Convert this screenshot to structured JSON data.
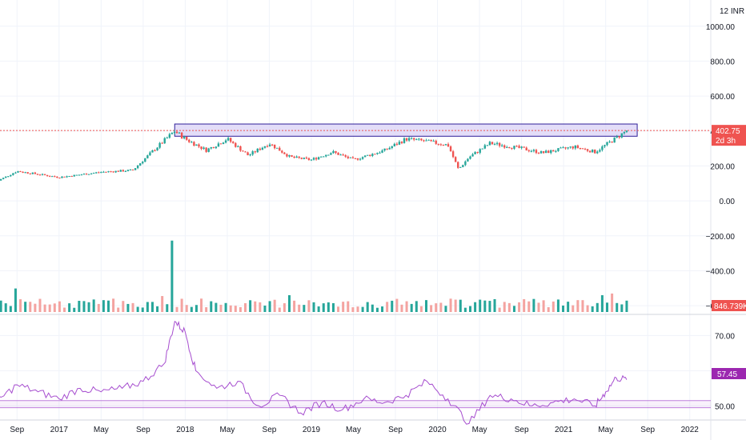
{
  "currency": "INR",
  "price_scale_prefix": "12",
  "colors": {
    "up": "#26a69a",
    "down": "#ef5350",
    "volume_up": "#26a69a",
    "volume_down": "#f4a3a0",
    "rsi_line": "#a64dcf",
    "rsi_tag": "#9c27b0",
    "zone_fill": "#d9d2f5",
    "zone_border": "#2f1f99",
    "grid": "#f0f3fa",
    "last_price_line": "#ef5350"
  },
  "price_tag": {
    "value": "402.75",
    "countdown": "2d 3h"
  },
  "volume_tag": {
    "value": "846.739K"
  },
  "rsi_tag": {
    "value": "57.45"
  },
  "chart_data": [
    {
      "type": "candlestick",
      "name": "price",
      "ylim": [
        -650,
        1150
      ],
      "y_ticks": [
        1000,
        800,
        600,
        400,
        200,
        0,
        -200,
        -400,
        -600
      ],
      "y_tick_labels": [
        "1000.00",
        "800.00",
        "600.00",
        "400.00",
        "200.00",
        "0.00",
        "−200.00",
        "−400.00",
        "−600.00"
      ],
      "x_tick_labels": [
        "Sep",
        "2017",
        "May",
        "Sep",
        "2018",
        "May",
        "Sep",
        "2019",
        "May",
        "Sep",
        "2020",
        "May",
        "Sep",
        "2021",
        "May",
        "Sep",
        "2022"
      ],
      "x_range": [
        "2016-07",
        "2022-03"
      ],
      "key_prices": [
        {
          "date": "2016-07",
          "close": 110
        },
        {
          "date": "2016-09",
          "close": 170
        },
        {
          "date": "2017-01",
          "close": 135
        },
        {
          "date": "2017-05",
          "close": 165
        },
        {
          "date": "2017-08",
          "close": 175
        },
        {
          "date": "2017-10",
          "close": 290
        },
        {
          "date": "2017-12",
          "close": 400
        },
        {
          "date": "2018-01",
          "close": 355
        },
        {
          "date": "2018-03",
          "close": 290
        },
        {
          "date": "2018-05",
          "close": 355
        },
        {
          "date": "2018-07",
          "close": 260
        },
        {
          "date": "2018-09",
          "close": 330
        },
        {
          "date": "2018-11",
          "close": 250
        },
        {
          "date": "2019-01",
          "close": 235
        },
        {
          "date": "2019-03",
          "close": 280
        },
        {
          "date": "2019-05",
          "close": 235
        },
        {
          "date": "2019-08",
          "close": 290
        },
        {
          "date": "2019-10",
          "close": 355
        },
        {
          "date": "2019-12",
          "close": 340
        },
        {
          "date": "2020-02",
          "close": 320
        },
        {
          "date": "2020-03",
          "close": 180
        },
        {
          "date": "2020-04",
          "close": 250
        },
        {
          "date": "2020-06",
          "close": 330
        },
        {
          "date": "2020-09",
          "close": 300
        },
        {
          "date": "2020-11",
          "close": 275
        },
        {
          "date": "2021-02",
          "close": 310
        },
        {
          "date": "2021-04",
          "close": 280
        },
        {
          "date": "2021-06",
          "close": 360
        },
        {
          "date": "2021-07",
          "close": 402.75
        }
      ],
      "zone": {
        "low": 370,
        "high": 440,
        "from": "2017-12",
        "to": "2021-08"
      },
      "last_price": 402.75
    },
    {
      "type": "bar",
      "name": "volume",
      "last_value": "846.739K",
      "spikes": [
        {
          "date": "2016-09",
          "value": 2.8
        },
        {
          "date": "2017-03",
          "value": 1.3
        },
        {
          "date": "2017-10",
          "value": 1.2
        },
        {
          "date": "2017-11",
          "value": 1.9
        },
        {
          "date": "2017-12",
          "value": 8.5
        },
        {
          "date": "2018-07",
          "value": 1.4
        },
        {
          "date": "2018-11",
          "value": 2.0
        },
        {
          "date": "2019-11",
          "value": 1.3
        },
        {
          "date": "2021-05",
          "value": 2.0
        },
        {
          "date": "2021-06",
          "value": 2.2
        }
      ]
    },
    {
      "type": "line",
      "name": "rsi",
      "ylim": [
        46,
        76
      ],
      "y_ticks": [
        70,
        60,
        50
      ],
      "y_tick_labels": [
        "70.00",
        "60.00",
        "50.00"
      ],
      "bands": [
        51.5,
        49.5
      ],
      "x": [
        "2016-07",
        "2016-09",
        "2016-11",
        "2017-01",
        "2017-03",
        "2017-05",
        "2017-07",
        "2017-09",
        "2017-11",
        "2017-12",
        "2018-01",
        "2018-02",
        "2018-04",
        "2018-06",
        "2018-08",
        "2018-10",
        "2018-12",
        "2019-02",
        "2019-04",
        "2019-06",
        "2019-08",
        "2019-10",
        "2019-12",
        "2020-02",
        "2020-04",
        "2020-06",
        "2020-08",
        "2020-10",
        "2020-12",
        "2021-02",
        "2021-04",
        "2021-05",
        "2021-06",
        "2021-07"
      ],
      "y": [
        51,
        56,
        54,
        52,
        55,
        54,
        55,
        57,
        62,
        74,
        71,
        60,
        55,
        57,
        50,
        53,
        48,
        51,
        49,
        52,
        51,
        53,
        57,
        52,
        45,
        53,
        52,
        50,
        51,
        52,
        50,
        54,
        58,
        57.45
      ],
      "last_value": 57.45
    }
  ]
}
